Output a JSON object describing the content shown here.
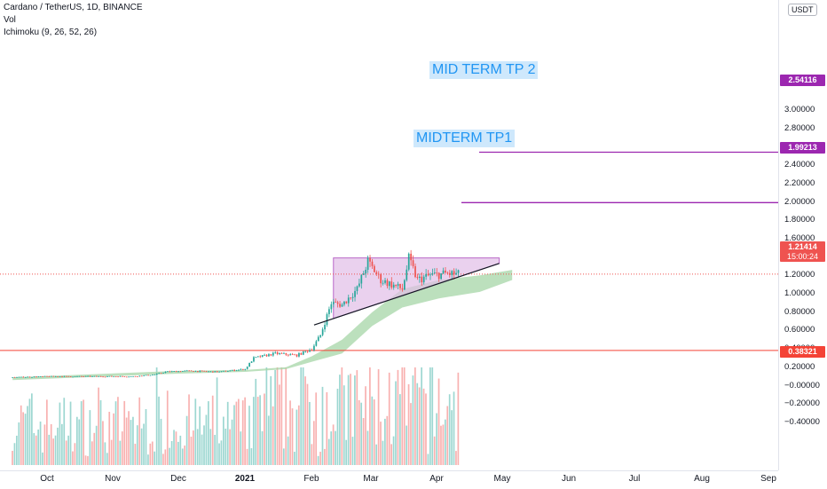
{
  "legend": {
    "symbol": "Cardano / TetherUS, 1D, BINANCE",
    "volume": "Vol",
    "ichimoku": "Ichimoku (9, 26, 52, 26)"
  },
  "currency_badge": "USDT",
  "annotations": {
    "tp2": "MID TERM TP 2",
    "tp1": "MIDTERM TP1"
  },
  "price_labels": {
    "tp2": "2.54116",
    "tp1": "1.99213",
    "current": "1.21414",
    "countdown": "15:00:24",
    "support": "0.38321"
  },
  "colors": {
    "up": "#26a69a",
    "down": "#ef5350",
    "cloud": "#a5d6a7",
    "tp_line": "#9c27b0",
    "support_line": "#f44336",
    "triangle_fill": "#e1bee7",
    "annotation_text": "#2196f3"
  },
  "chart_data": {
    "type": "candlestick",
    "y_ticks": [
      "3.00000",
      "2.80000",
      "2.60000",
      "2.40000",
      "2.20000",
      "2.00000",
      "1.80000",
      "1.60000",
      "1.40000",
      "1.20000",
      "1.00000",
      "0.80000",
      "0.60000",
      "0.40000",
      "0.20000",
      "−0.00000",
      "−0.20000",
      "−0.40000"
    ],
    "ylim": [
      -0.5,
      3.05
    ],
    "x_ticks": [
      {
        "label": "Oct",
        "bold": false
      },
      {
        "label": "Nov",
        "bold": false
      },
      {
        "label": "Dec",
        "bold": false
      },
      {
        "label": "2021",
        "bold": true
      },
      {
        "label": "Feb",
        "bold": false
      },
      {
        "label": "Mar",
        "bold": false
      },
      {
        "label": "Apr",
        "bold": false
      },
      {
        "label": "May",
        "bold": false
      },
      {
        "label": "Jun",
        "bold": false
      },
      {
        "label": "Jul",
        "bold": false
      },
      {
        "label": "Aug",
        "bold": false
      },
      {
        "label": "Sep",
        "bold": false
      }
    ],
    "key_levels": {
      "tp2": 2.54116,
      "tp1": 1.99213,
      "current": 1.21414,
      "support": 0.38321
    },
    "price_anchors": [
      [
        "2020-09-15",
        0.09
      ],
      [
        "2020-10-01",
        0.1
      ],
      [
        "2020-10-20",
        0.1
      ],
      [
        "2020-11-10",
        0.1
      ],
      [
        "2020-11-20",
        0.12
      ],
      [
        "2020-11-25",
        0.15
      ],
      [
        "2020-12-05",
        0.16
      ],
      [
        "2020-12-20",
        0.15
      ],
      [
        "2021-01-01",
        0.18
      ],
      [
        "2021-01-05",
        0.3
      ],
      [
        "2021-01-15",
        0.35
      ],
      [
        "2021-01-25",
        0.33
      ],
      [
        "2021-02-01",
        0.4
      ],
      [
        "2021-02-05",
        0.55
      ],
      [
        "2021-02-10",
        0.9
      ],
      [
        "2021-02-15",
        0.88
      ],
      [
        "2021-02-22",
        1.05
      ],
      [
        "2021-02-27",
        1.35
      ],
      [
        "2021-03-05",
        1.15
      ],
      [
        "2021-03-10",
        1.1
      ],
      [
        "2021-03-15",
        1.05
      ],
      [
        "2021-03-18",
        1.38
      ],
      [
        "2021-03-22",
        1.15
      ],
      [
        "2021-03-28",
        1.2
      ],
      [
        "2021-04-05",
        1.22
      ],
      [
        "2021-04-10",
        1.21
      ]
    ],
    "cloud_band": [
      [
        "2020-09-15",
        0.06,
        0.09
      ],
      [
        "2020-12-01",
        0.13,
        0.16
      ],
      [
        "2021-01-01",
        0.15,
        0.17
      ],
      [
        "2021-01-20",
        0.18,
        0.2
      ],
      [
        "2021-02-01",
        0.26,
        0.32
      ],
      [
        "2021-02-15",
        0.35,
        0.5
      ],
      [
        "2021-03-01",
        0.65,
        0.8
      ],
      [
        "2021-03-15",
        0.85,
        1.05
      ],
      [
        "2021-04-01",
        0.95,
        1.15
      ],
      [
        "2021-04-20",
        1.02,
        1.2
      ],
      [
        "2021-05-05",
        1.15,
        1.26
      ]
    ],
    "ascending_triangle": {
      "resistance": [
        [
          "2021-02-11",
          1.39
        ],
        [
          "2021-04-29",
          1.39
        ]
      ],
      "support_trend": [
        [
          "2021-02-02",
          0.66
        ],
        [
          "2021-04-29",
          1.33
        ]
      ]
    }
  }
}
